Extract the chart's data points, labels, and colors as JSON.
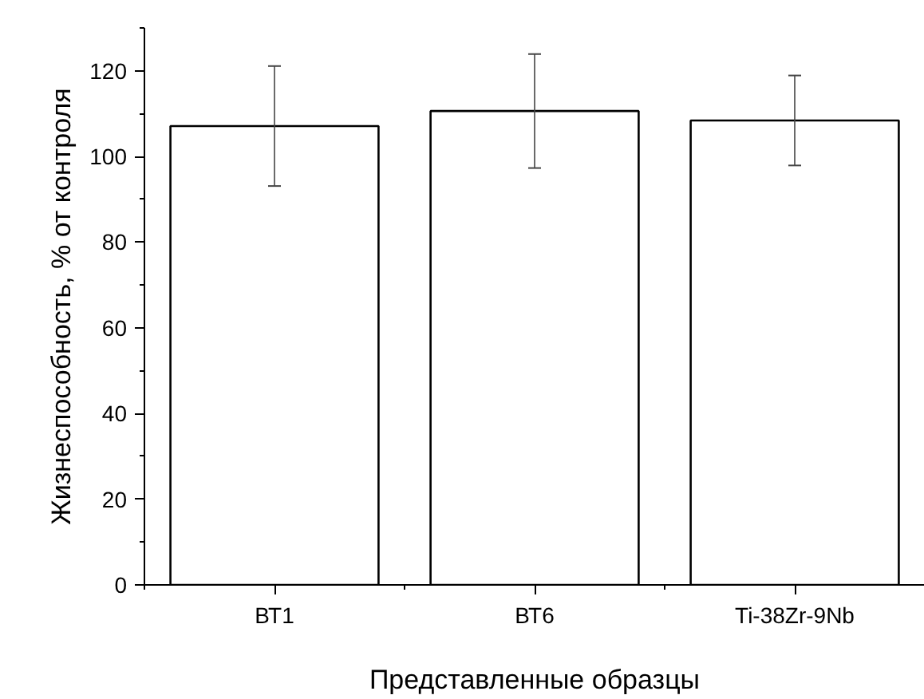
{
  "chart_data": {
    "type": "bar",
    "xlabel": "Представленные образцы",
    "ylabel": "Жизнеспособность, % от контроля",
    "categories": [
      "ВТ1",
      "ВТ6",
      "Ti-38Zr-9Nb"
    ],
    "values": [
      107.1,
      110.6,
      108.4
    ],
    "errors": [
      14,
      13.3,
      10.5
    ],
    "color": "#ffffff",
    "ylim": [
      0,
      130
    ],
    "yticks": [
      0,
      20,
      40,
      60,
      80,
      100,
      120
    ],
    "grid": false
  }
}
